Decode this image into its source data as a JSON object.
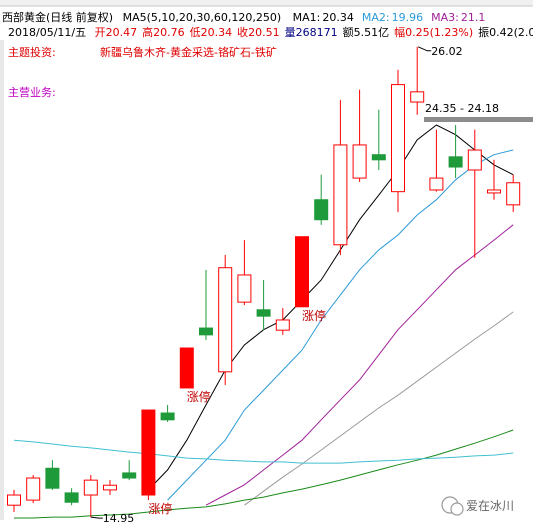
{
  "chart_data": {
    "type": "candlestick",
    "title": "西部黄金(日线 前复权)",
    "indicator": "MA5(5,10,20,30,60,120,250)",
    "quote": {
      "date": "2018/05/11/五",
      "items": [
        {
          "label": "开",
          "value": 20.47,
          "color": "#e00000"
        },
        {
          "label": "高",
          "value": 20.76,
          "color": "#e00000"
        },
        {
          "label": "低",
          "value": 20.34,
          "color": "#e00000"
        },
        {
          "label": "收",
          "value": 20.51,
          "color": "#e00000"
        },
        {
          "label": "量",
          "value": 268171,
          "color": "#000080"
        },
        {
          "label": "额",
          "value": "5.51亿",
          "color": "#000000"
        },
        {
          "label": "幅",
          "value": "0.25(1.23%)",
          "color": "#e00000"
        },
        {
          "label": "振",
          "value": "0.42(2.07%",
          "color": "#000000"
        }
      ]
    },
    "theme_label": "主题投资:",
    "theme": "新疆乌鲁木齐-黄金采选-铬矿石-铁矿",
    "business_label": "主营业务:",
    "ylim": [
      14.67,
      26.18
    ],
    "up_color": "#ff0000",
    "down_color": "#1e9a3a",
    "open": [
      15.23,
      15.35,
      16.1,
      15.52,
      15.47,
      15.59,
      15.99,
      15.47,
      17.4,
      17.99,
      19.4,
      18.37,
      20.01,
      19.83,
      19.35,
      19.9,
      22.42,
      21.36,
      22.93,
      23.48,
      22.61,
      24.72,
      22.65,
      23.43,
      23.12,
      22.58,
      22.3
    ],
    "high": [
      15.59,
      15.94,
      16.29,
      15.63,
      15.94,
      15.82,
      16.29,
      17.47,
      17.59,
      18.93,
      20.77,
      21.12,
      21.47,
      20.53,
      19.87,
      21.55,
      23.01,
      24.77,
      25.01,
      24.54,
      25.48,
      26.02,
      24.07,
      24.18,
      24.07,
      23.36,
      23.01
    ],
    "low": [
      15.07,
      15.28,
      15.59,
      15.23,
      14.95,
      15.47,
      15.82,
      15.35,
      17.19,
      17.99,
      19.12,
      18.06,
      19.94,
      19.35,
      19.24,
      19.9,
      21.83,
      21.12,
      22.84,
      23.12,
      22.13,
      24.42,
      22.61,
      22.93,
      21.05,
      22.42,
      22.13
    ],
    "close": [
      15.47,
      15.87,
      15.63,
      15.3,
      15.82,
      15.7,
      15.87,
      17.47,
      17.24,
      18.93,
      19.24,
      20.82,
      20.65,
      19.68,
      19.59,
      21.55,
      21.95,
      23.71,
      23.71,
      23.36,
      25.13,
      24.96,
      22.93,
      23.19,
      23.59,
      22.65,
      22.82
    ],
    "series": [
      {
        "name": "MA1:",
        "value": 20.34,
        "color": "#000000",
        "values": [
          null,
          null,
          null,
          null,
          null,
          null,
          null,
          15.59,
          16.06,
          16.76,
          17.59,
          18.41,
          19.0,
          19.36,
          19.59,
          20.06,
          20.53,
          21.24,
          21.95,
          22.53,
          23.12,
          23.83,
          24.18,
          23.95,
          23.59,
          23.24,
          23.01
        ]
      },
      {
        "name": "MA2:",
        "value": 19.96,
        "color": "#2a9ad8",
        "values": [
          null,
          null,
          null,
          null,
          null,
          null,
          null,
          null,
          15.35,
          15.82,
          16.29,
          16.76,
          17.47,
          17.94,
          18.41,
          18.88,
          19.59,
          20.18,
          20.77,
          21.24,
          21.59,
          22.06,
          22.42,
          22.89,
          23.24,
          23.48,
          23.59
        ]
      },
      {
        "name": "MA3:",
        "value": 21.1,
        "color": "#a0209a",
        "values": [
          null,
          null,
          null,
          null,
          null,
          null,
          null,
          null,
          null,
          null,
          15.23,
          15.47,
          15.71,
          16.06,
          16.41,
          16.76,
          17.24,
          17.71,
          18.18,
          18.77,
          19.36,
          19.83,
          20.3,
          20.77,
          21.12,
          21.47,
          21.83
        ]
      },
      {
        "color": "#9a9a9a",
        "values": [
          null,
          null,
          null,
          null,
          null,
          null,
          null,
          null,
          null,
          null,
          null,
          null,
          15.23,
          15.56,
          15.89,
          16.2,
          16.53,
          16.86,
          17.19,
          17.52,
          17.82,
          18.15,
          18.48,
          18.81,
          19.14,
          19.45,
          19.78
        ]
      },
      {
        "color": "#1a8a1a",
        "values": [
          14.93,
          14.93,
          14.95,
          14.95,
          14.98,
          15.0,
          15.02,
          15.07,
          15.12,
          15.16,
          15.19,
          15.26,
          15.35,
          15.42,
          15.52,
          15.61,
          15.71,
          15.82,
          15.94,
          16.06,
          16.18,
          16.29,
          16.41,
          16.55,
          16.69,
          16.84,
          17.0
        ]
      },
      {
        "color": "#40c0d0",
        "values": [
          16.76,
          16.72,
          16.67,
          16.62,
          16.58,
          16.53,
          16.48,
          16.44,
          16.39,
          16.34,
          16.32,
          16.29,
          16.27,
          16.25,
          16.25,
          16.22,
          16.22,
          16.22,
          16.25,
          16.27,
          16.29,
          16.32,
          16.34,
          16.36,
          16.39,
          16.41,
          16.46
        ]
      }
    ],
    "max_label": 26.02,
    "min_label": 14.95,
    "range_label": "24.35 - 24.18",
    "annotations": [
      {
        "text": "涨停",
        "index": 7
      },
      {
        "text": "涨停",
        "index": 9
      },
      {
        "text": "涨停",
        "index": 15
      }
    ],
    "watermark": "爱在冰川"
  }
}
